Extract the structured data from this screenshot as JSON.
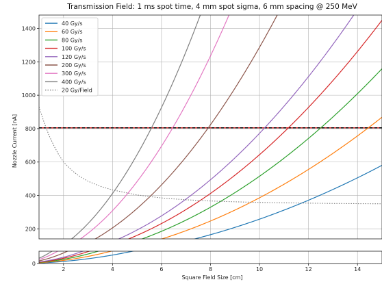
{
  "chart_data": {
    "type": "line",
    "title": "Transmission Field: 1 ms spot time, 4 mm spot sigma, 6 mm spacing @ 250 MeV",
    "xlabel": "Square Field Size [cm]",
    "ylabel": "Nozzle Current [nA]",
    "xlim": [
      1,
      15
    ],
    "ylim": [
      0,
      1480
    ],
    "y_axis_break": [
      60,
      140
    ],
    "xticks": [
      2,
      4,
      6,
      8,
      10,
      12,
      14
    ],
    "yticks": [
      0,
      200,
      400,
      600,
      800,
      1000,
      1200,
      1400
    ],
    "grid": true,
    "legend_position": "top-left",
    "horizontal_line": {
      "y": 805,
      "colors": [
        "#d62728",
        "#000000"
      ]
    },
    "series": [
      {
        "name": "40 Gy/s",
        "color": "#1f77b4",
        "style": "solid",
        "x": [
          1,
          2,
          4,
          6,
          8,
          10,
          12,
          14,
          15
        ],
        "y": [
          3,
          10,
          41,
          93,
          165,
          258,
          371,
          505,
          580
        ]
      },
      {
        "name": "60 Gy/s",
        "color": "#ff7f0e",
        "style": "solid",
        "x": [
          1,
          2,
          4,
          6,
          8,
          10,
          12,
          14,
          15
        ],
        "y": [
          5,
          16,
          62,
          139,
          247,
          386,
          556,
          757,
          869
        ]
      },
      {
        "name": "80 Gy/s",
        "color": "#2ca02c",
        "style": "solid",
        "x": [
          1,
          2,
          4,
          6,
          8,
          10,
          12,
          14,
          15
        ],
        "y": [
          6,
          21,
          82,
          185,
          329,
          515,
          741,
          1009,
          1158
        ]
      },
      {
        "name": "100 Gy/s",
        "color": "#d62728",
        "style": "solid",
        "x": [
          1,
          2,
          4,
          6,
          8,
          10,
          12,
          14,
          15
        ],
        "y": [
          8,
          26,
          103,
          232,
          412,
          644,
          927,
          1262,
          1448
        ]
      },
      {
        "name": "120 Gy/s",
        "color": "#9467bd",
        "style": "solid",
        "x": [
          1,
          2,
          4,
          6,
          8,
          10,
          12,
          14,
          15
        ],
        "y": [
          9,
          31,
          124,
          278,
          494,
          772,
          1112,
          1514,
          1738
        ]
      },
      {
        "name": "200 Gy/s",
        "color": "#8c564b",
        "style": "solid",
        "x": [
          1,
          2,
          4,
          6,
          8,
          10,
          12,
          14,
          15
        ],
        "y": [
          15,
          52,
          206,
          463,
          824,
          1287,
          1853,
          2523,
          2897
        ]
      },
      {
        "name": "300 Gy/s",
        "color": "#e377c2",
        "style": "solid",
        "x": [
          1,
          2,
          4,
          6,
          8,
          10,
          12,
          14,
          15
        ],
        "y": [
          23,
          77,
          309,
          695,
          1236,
          1931,
          2780,
          3784,
          4345
        ]
      },
      {
        "name": "400 Gy/s",
        "color": "#7f7f7f",
        "style": "solid",
        "x": [
          1,
          2,
          4,
          6,
          8,
          10,
          12,
          14,
          15
        ],
        "y": [
          31,
          103,
          412,
          927,
          1648,
          2574,
          3707,
          5046,
          5793
        ]
      },
      {
        "name": "20 Gy/Field",
        "color": "#7f7f7f",
        "style": "dotted",
        "x": [
          1,
          1.2,
          1.4,
          1.6,
          1.8,
          2,
          2.3,
          2.6,
          3,
          3.5,
          4,
          5,
          6,
          7,
          8,
          9,
          10,
          11,
          12,
          13,
          14,
          15
        ],
        "y": [
          930,
          840,
          762,
          700,
          645,
          600,
          555,
          520,
          485,
          455,
          433,
          403,
          385,
          374,
          367,
          362,
          358,
          356,
          354,
          352,
          351,
          350
        ]
      }
    ]
  }
}
